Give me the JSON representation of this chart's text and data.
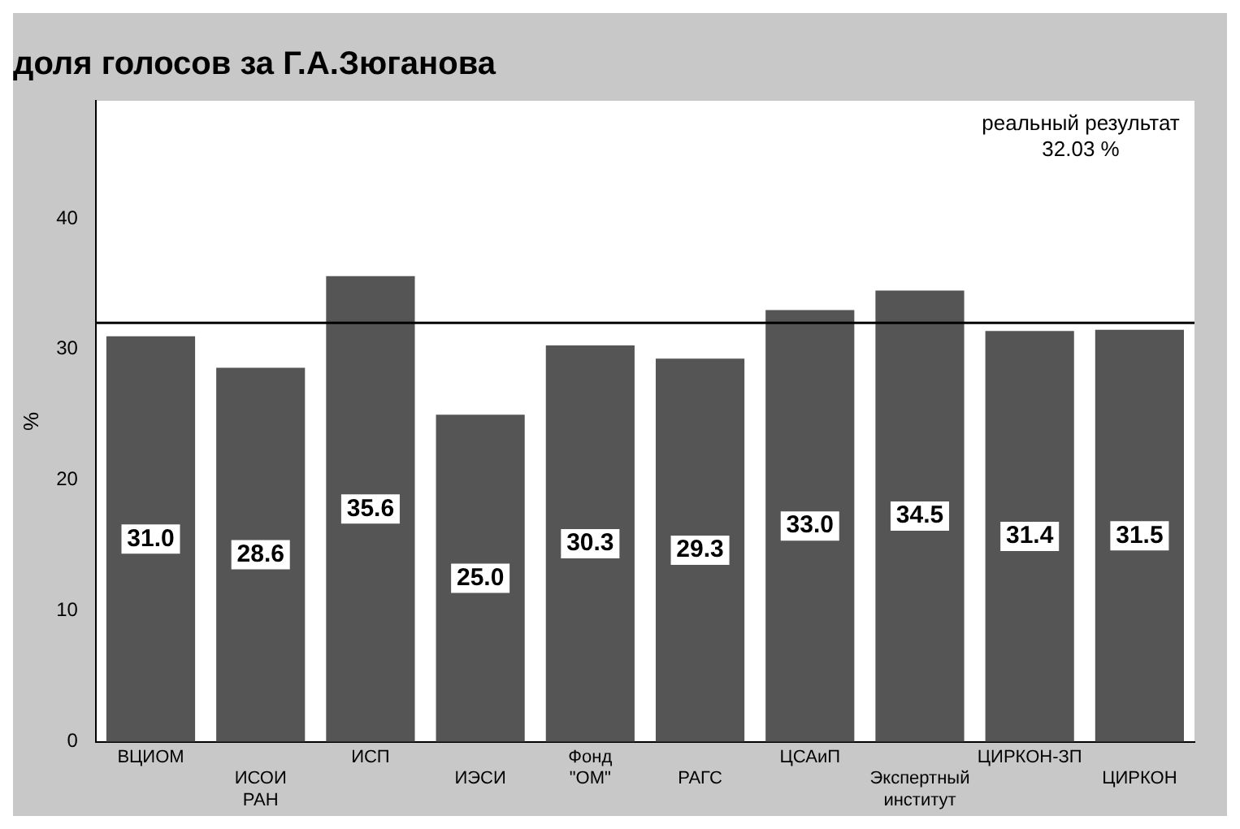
{
  "chart_data": {
    "type": "bar",
    "title": "доля голосов за Г.А.Зюганова",
    "ylabel": "%",
    "categories": [
      "ВЦИОМ",
      "ИСОИ РАН",
      "ИСП",
      "ИЭСИ",
      "Фонд \"ОМ\"",
      "РАГС",
      "ЦСАиП",
      "Экспертный институт",
      "ЦИРКОН-ЗП",
      "ЦИРКОН"
    ],
    "values": [
      31.0,
      28.6,
      35.6,
      25.0,
      30.3,
      29.3,
      33.0,
      34.5,
      31.4,
      31.5
    ],
    "value_labels": [
      "31.0",
      "28.6",
      "35.6",
      "25.0",
      "30.3",
      "29.3",
      "33.0",
      "34.5",
      "31.4",
      "31.5"
    ],
    "color": "#555555",
    "ylim": [
      0,
      49
    ],
    "yticks": [
      0,
      10,
      20,
      30,
      40
    ],
    "grid": false,
    "ref_lines": [
      {
        "axis": "y",
        "value": 32.03,
        "label": "реальный результат\n32.03 %",
        "color": "#000000"
      }
    ]
  }
}
